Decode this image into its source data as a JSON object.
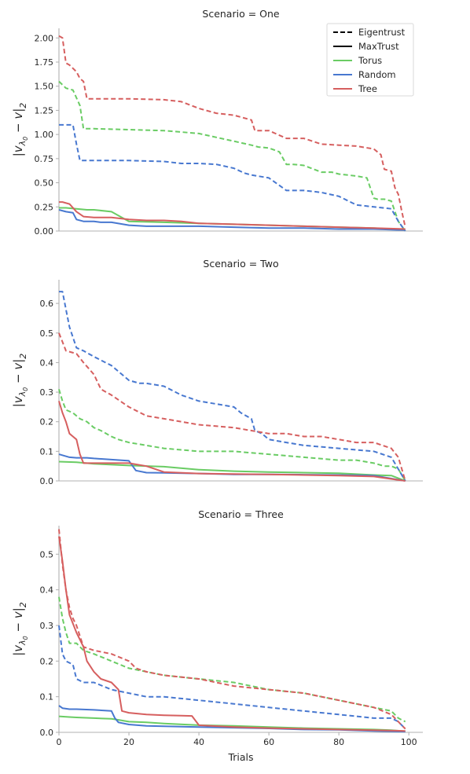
{
  "colors": {
    "Torus": "#6acc64",
    "Random": "#4878d0",
    "Tree": "#d65f5f",
    "axis": "#b0b0b0",
    "text": "#262626"
  },
  "legend": {
    "style_entries": [
      {
        "label": "Eigentrust",
        "dash": "dashed"
      },
      {
        "label": "MaxTrust",
        "dash": "solid"
      }
    ],
    "color_entries": [
      {
        "label": "Torus",
        "color_key": "Torus"
      },
      {
        "label": "Random",
        "color_key": "Random"
      },
      {
        "label": "Tree",
        "color_key": "Tree"
      }
    ],
    "placement": "top-right of first panel"
  },
  "xlabel": "Trials",
  "chart_data": [
    {
      "type": "line",
      "title": "Scenario = One",
      "ylabel": "|v_{λ0} − v|_2",
      "ylabel_main": "|v",
      "ylabel_sub": "λ",
      "ylabel_subsub": "0",
      "ylabel_tail": " − v|",
      "ylabel_tailsub": "2",
      "xlim": [
        0,
        104
      ],
      "ylim": [
        0,
        2.1
      ],
      "xticks": [],
      "yticks": [
        0.0,
        0.25,
        0.5,
        0.75,
        1.0,
        1.25,
        1.5,
        1.75,
        2.0
      ],
      "ytick_labels": [
        "0.00",
        "0.25",
        "0.50",
        "0.75",
        "1.00",
        "1.25",
        "1.50",
        "1.75",
        "2.00"
      ],
      "grid": false,
      "series": [
        {
          "name": "Torus",
          "method": "Eigentrust",
          "x": [
            0,
            2,
            4,
            6,
            7,
            10,
            20,
            30,
            40,
            45,
            50,
            55,
            57,
            60,
            63,
            65,
            67,
            70,
            75,
            78,
            80,
            85,
            88,
            90,
            91,
            93,
            95,
            97,
            99
          ],
          "values": [
            1.55,
            1.48,
            1.46,
            1.3,
            1.06,
            1.06,
            1.05,
            1.04,
            1.01,
            0.97,
            0.93,
            0.89,
            0.87,
            0.86,
            0.82,
            0.69,
            0.69,
            0.68,
            0.61,
            0.61,
            0.59,
            0.57,
            0.55,
            0.34,
            0.33,
            0.33,
            0.31,
            0.1,
            0.0
          ]
        },
        {
          "name": "Random",
          "method": "Eigentrust",
          "x": [
            0,
            4,
            5,
            6,
            10,
            20,
            30,
            35,
            40,
            45,
            50,
            53,
            55,
            60,
            65,
            70,
            75,
            80,
            85,
            90,
            95,
            97,
            99
          ],
          "values": [
            1.1,
            1.1,
            0.9,
            0.73,
            0.73,
            0.73,
            0.72,
            0.7,
            0.7,
            0.69,
            0.65,
            0.6,
            0.58,
            0.55,
            0.42,
            0.42,
            0.4,
            0.36,
            0.27,
            0.25,
            0.23,
            0.1,
            0.0
          ]
        },
        {
          "name": "Tree",
          "method": "Eigentrust",
          "x": [
            0,
            1,
            2,
            3,
            5,
            6,
            7,
            8,
            10,
            20,
            30,
            35,
            40,
            45,
            50,
            55,
            56,
            58,
            60,
            65,
            70,
            75,
            80,
            85,
            90,
            92,
            93,
            95,
            96,
            97,
            98,
            99
          ],
          "values": [
            2.02,
            2.0,
            1.74,
            1.72,
            1.65,
            1.58,
            1.55,
            1.37,
            1.37,
            1.37,
            1.36,
            1.34,
            1.27,
            1.22,
            1.2,
            1.15,
            1.04,
            1.04,
            1.04,
            0.96,
            0.96,
            0.9,
            0.89,
            0.88,
            0.85,
            0.79,
            0.64,
            0.62,
            0.45,
            0.38,
            0.2,
            0.04
          ]
        },
        {
          "name": "Torus",
          "method": "MaxTrust",
          "x": [
            0,
            2,
            5,
            8,
            10,
            15,
            20,
            30,
            40,
            50,
            60,
            70,
            80,
            90,
            95,
            99
          ],
          "values": [
            0.24,
            0.24,
            0.23,
            0.22,
            0.22,
            0.2,
            0.1,
            0.09,
            0.08,
            0.07,
            0.06,
            0.05,
            0.04,
            0.03,
            0.02,
            0.01
          ]
        },
        {
          "name": "Random",
          "method": "MaxTrust",
          "x": [
            0,
            2,
            4,
            5,
            7,
            10,
            12,
            15,
            20,
            25,
            30,
            40,
            50,
            60,
            70,
            80,
            90,
            99
          ],
          "values": [
            0.22,
            0.2,
            0.19,
            0.12,
            0.1,
            0.1,
            0.09,
            0.09,
            0.06,
            0.05,
            0.05,
            0.05,
            0.04,
            0.03,
            0.03,
            0.02,
            0.02,
            0.01
          ]
        },
        {
          "name": "Tree",
          "method": "MaxTrust",
          "x": [
            0,
            1,
            3,
            5,
            7,
            10,
            15,
            20,
            25,
            30,
            35,
            40,
            50,
            60,
            70,
            80,
            90,
            99
          ],
          "values": [
            0.3,
            0.3,
            0.28,
            0.2,
            0.15,
            0.14,
            0.14,
            0.12,
            0.11,
            0.11,
            0.1,
            0.08,
            0.07,
            0.06,
            0.05,
            0.04,
            0.03,
            0.02
          ]
        }
      ]
    },
    {
      "type": "line",
      "title": "Scenario = Two",
      "ylabel": "|v_{λ0} − v|_2",
      "ylabel_main": "|v",
      "ylabel_sub": "λ",
      "ylabel_subsub": "0",
      "ylabel_tail": " − v|",
      "ylabel_tailsub": "2",
      "xlim": [
        0,
        104
      ],
      "ylim": [
        0,
        0.68
      ],
      "xticks": [],
      "yticks": [
        0.0,
        0.1,
        0.2,
        0.3,
        0.4,
        0.5,
        0.6
      ],
      "ytick_labels": [
        "0.0",
        "0.1",
        "0.2",
        "0.3",
        "0.4",
        "0.5",
        "0.6"
      ],
      "grid": false,
      "series": [
        {
          "name": "Torus",
          "method": "Eigentrust",
          "x": [
            0,
            1,
            2,
            4,
            6,
            8,
            10,
            12,
            15,
            17,
            20,
            25,
            30,
            40,
            50,
            60,
            70,
            80,
            85,
            90,
            93,
            95,
            97,
            99
          ],
          "values": [
            0.31,
            0.27,
            0.24,
            0.23,
            0.21,
            0.2,
            0.18,
            0.17,
            0.15,
            0.14,
            0.13,
            0.12,
            0.11,
            0.1,
            0.1,
            0.09,
            0.08,
            0.07,
            0.07,
            0.06,
            0.05,
            0.05,
            0.04,
            0.0
          ]
        },
        {
          "name": "Random",
          "method": "Eigentrust",
          "x": [
            0,
            1,
            2,
            3,
            5,
            7,
            10,
            15,
            20,
            23,
            25,
            30,
            35,
            40,
            45,
            50,
            52,
            55,
            56,
            58,
            60,
            65,
            70,
            80,
            90,
            95,
            99
          ],
          "values": [
            0.64,
            0.64,
            0.58,
            0.52,
            0.45,
            0.44,
            0.42,
            0.39,
            0.34,
            0.33,
            0.33,
            0.32,
            0.29,
            0.27,
            0.26,
            0.25,
            0.23,
            0.21,
            0.17,
            0.16,
            0.14,
            0.13,
            0.12,
            0.11,
            0.1,
            0.08,
            0.0
          ]
        },
        {
          "name": "Tree",
          "method": "Eigentrust",
          "x": [
            0,
            1,
            2,
            5,
            7,
            10,
            12,
            15,
            20,
            25,
            30,
            40,
            50,
            55,
            60,
            65,
            70,
            75,
            80,
            85,
            90,
            95,
            97,
            99
          ],
          "values": [
            0.5,
            0.47,
            0.44,
            0.43,
            0.4,
            0.36,
            0.31,
            0.29,
            0.25,
            0.22,
            0.21,
            0.19,
            0.18,
            0.17,
            0.16,
            0.16,
            0.15,
            0.15,
            0.14,
            0.13,
            0.13,
            0.11,
            0.08,
            0.0
          ]
        },
        {
          "name": "Torus",
          "method": "MaxTrust",
          "x": [
            0,
            5,
            10,
            20,
            30,
            40,
            50,
            60,
            70,
            80,
            90,
            95,
            99
          ],
          "values": [
            0.065,
            0.063,
            0.058,
            0.052,
            0.048,
            0.038,
            0.033,
            0.03,
            0.028,
            0.026,
            0.02,
            0.018,
            0.0
          ]
        },
        {
          "name": "Random",
          "method": "MaxTrust",
          "x": [
            0,
            3,
            5,
            8,
            10,
            15,
            20,
            22,
            25,
            30,
            40,
            50,
            60,
            70,
            80,
            90,
            99
          ],
          "values": [
            0.09,
            0.08,
            0.078,
            0.078,
            0.076,
            0.072,
            0.068,
            0.035,
            0.028,
            0.027,
            0.025,
            0.022,
            0.022,
            0.021,
            0.02,
            0.018,
            0.0
          ]
        },
        {
          "name": "Tree",
          "method": "MaxTrust",
          "x": [
            0,
            1,
            2,
            3,
            4,
            5,
            6,
            7,
            8,
            10,
            15,
            20,
            25,
            30,
            40,
            50,
            60,
            70,
            80,
            90,
            99
          ],
          "values": [
            0.27,
            0.23,
            0.2,
            0.16,
            0.15,
            0.14,
            0.09,
            0.06,
            0.06,
            0.06,
            0.06,
            0.06,
            0.05,
            0.03,
            0.025,
            0.023,
            0.022,
            0.02,
            0.018,
            0.015,
            0.0
          ]
        }
      ]
    },
    {
      "type": "line",
      "title": "Scenario = Three",
      "ylabel": "|v_{λ0} − v|_2",
      "ylabel_main": "|v",
      "ylabel_sub": "λ",
      "ylabel_subsub": "0",
      "ylabel_tail": " − v|",
      "ylabel_tailsub": "2",
      "xlim": [
        0,
        104
      ],
      "ylim": [
        0,
        0.58
      ],
      "xticks": [
        0,
        20,
        40,
        60,
        80,
        100
      ],
      "xtick_labels": [
        "0",
        "20",
        "40",
        "60",
        "80",
        "100"
      ],
      "yticks": [
        0.0,
        0.1,
        0.2,
        0.3,
        0.4,
        0.5
      ],
      "ytick_labels": [
        "0.0",
        "0.1",
        "0.2",
        "0.3",
        "0.4",
        "0.5"
      ],
      "grid": false,
      "series": [
        {
          "name": "Torus",
          "method": "Eigentrust",
          "x": [
            0,
            1,
            2,
            3,
            5,
            7,
            10,
            15,
            20,
            25,
            30,
            40,
            50,
            60,
            70,
            80,
            90,
            95,
            97,
            99
          ],
          "values": [
            0.38,
            0.32,
            0.28,
            0.25,
            0.25,
            0.23,
            0.22,
            0.2,
            0.18,
            0.17,
            0.16,
            0.15,
            0.14,
            0.12,
            0.11,
            0.09,
            0.07,
            0.06,
            0.04,
            0.03
          ]
        },
        {
          "name": "Random",
          "method": "Eigentrust",
          "x": [
            0,
            1,
            2,
            4,
            5,
            7,
            10,
            15,
            20,
            25,
            30,
            40,
            50,
            60,
            70,
            80,
            90,
            95,
            97,
            99
          ],
          "values": [
            0.3,
            0.22,
            0.2,
            0.19,
            0.15,
            0.14,
            0.14,
            0.12,
            0.11,
            0.1,
            0.1,
            0.09,
            0.08,
            0.07,
            0.06,
            0.05,
            0.04,
            0.04,
            0.03,
            0.01
          ]
        },
        {
          "name": "Tree",
          "method": "Eigentrust",
          "x": [
            0,
            1,
            2,
            3,
            4,
            5,
            7,
            10,
            15,
            20,
            22,
            25,
            30,
            40,
            50,
            60,
            70,
            80,
            90,
            95,
            97,
            99
          ],
          "values": [
            0.57,
            0.47,
            0.4,
            0.35,
            0.32,
            0.3,
            0.24,
            0.23,
            0.22,
            0.2,
            0.18,
            0.17,
            0.16,
            0.15,
            0.13,
            0.12,
            0.11,
            0.09,
            0.07,
            0.05,
            0.03,
            0.01
          ]
        },
        {
          "name": "Torus",
          "method": "MaxTrust",
          "x": [
            0,
            3,
            5,
            10,
            15,
            17,
            20,
            25,
            30,
            40,
            50,
            60,
            70,
            80,
            90,
            95,
            99
          ],
          "values": [
            0.045,
            0.043,
            0.042,
            0.04,
            0.038,
            0.035,
            0.03,
            0.028,
            0.025,
            0.02,
            0.018,
            0.015,
            0.012,
            0.01,
            0.008,
            0.006,
            0.003
          ]
        },
        {
          "name": "Random",
          "method": "MaxTrust",
          "x": [
            0,
            1,
            3,
            5,
            10,
            15,
            16,
            17,
            20,
            25,
            30,
            40,
            50,
            60,
            70,
            80,
            90,
            99
          ],
          "values": [
            0.075,
            0.068,
            0.065,
            0.065,
            0.063,
            0.06,
            0.04,
            0.028,
            0.022,
            0.018,
            0.017,
            0.015,
            0.013,
            0.011,
            0.008,
            0.007,
            0.004,
            0.002
          ]
        },
        {
          "name": "Tree",
          "method": "MaxTrust",
          "x": [
            0,
            1,
            2,
            3,
            5,
            7,
            8,
            10,
            12,
            15,
            17,
            18,
            20,
            25,
            30,
            35,
            38,
            40,
            50,
            60,
            70,
            80,
            90,
            99
          ],
          "values": [
            0.55,
            0.48,
            0.4,
            0.33,
            0.28,
            0.24,
            0.2,
            0.17,
            0.15,
            0.14,
            0.12,
            0.06,
            0.055,
            0.05,
            0.048,
            0.047,
            0.046,
            0.02,
            0.015,
            0.012,
            0.01,
            0.008,
            0.006,
            0.004
          ]
        }
      ]
    }
  ]
}
